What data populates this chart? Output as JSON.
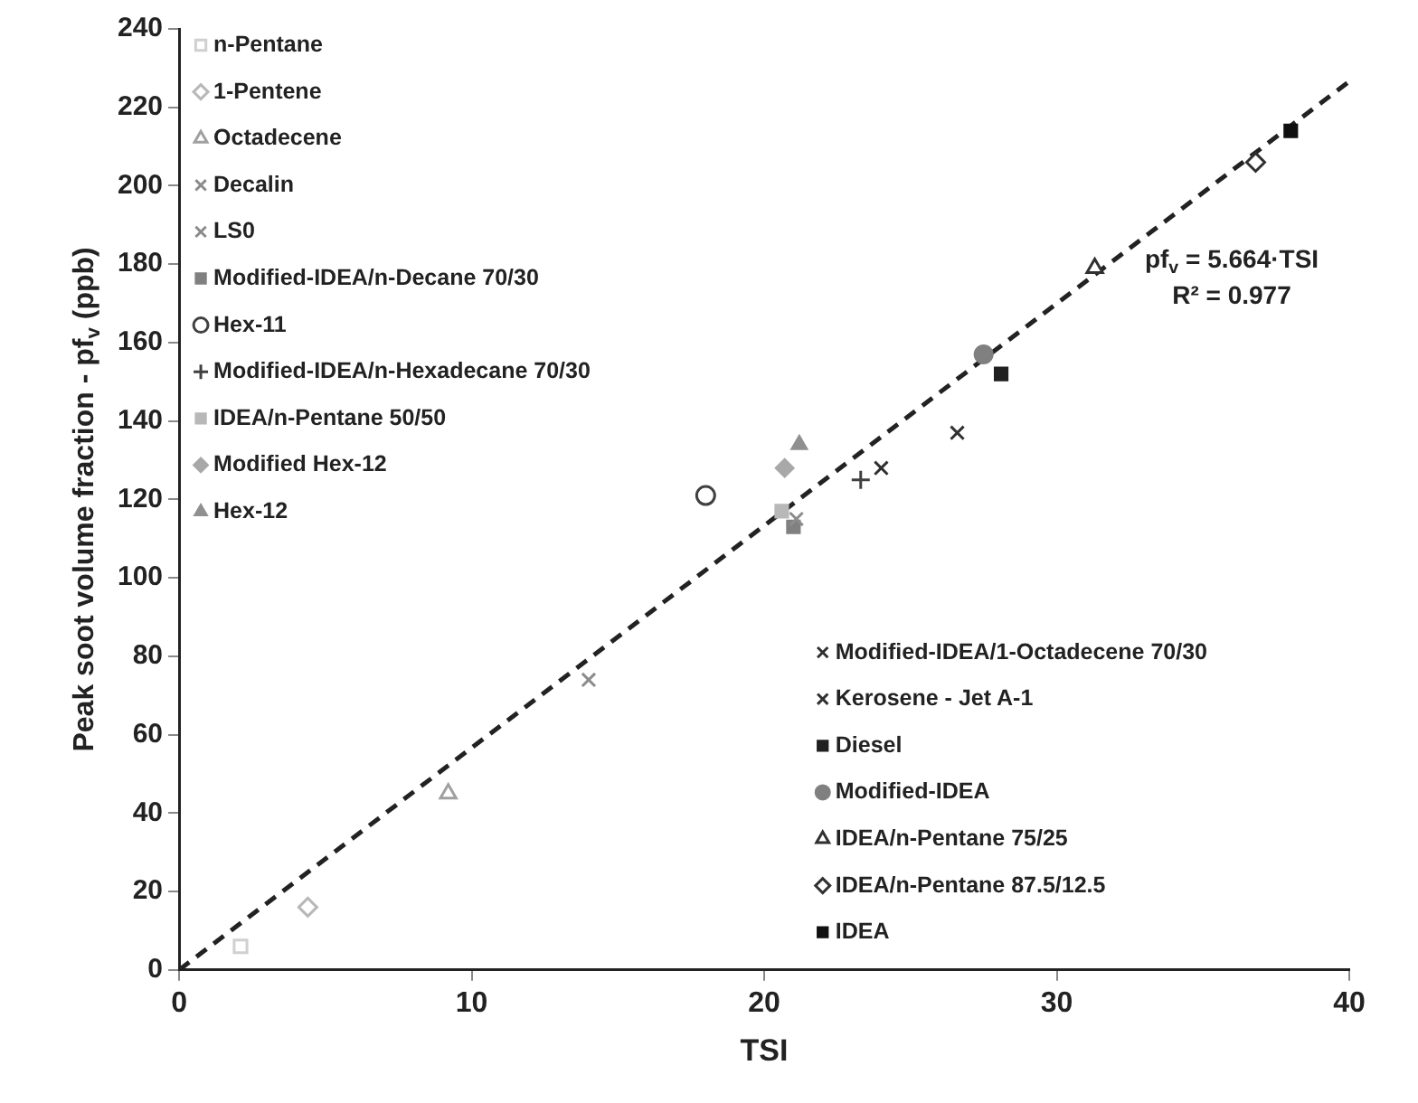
{
  "chart_data": {
    "type": "scatter",
    "xlabel": "TSI",
    "ylabel": "Peak soot volume fraction - pf$_{v}$ (ppb)",
    "xlim": [
      0,
      40
    ],
    "xticks": [
      0,
      10,
      20,
      30,
      40
    ],
    "ylim": [
      0,
      240
    ],
    "yticks": [
      0,
      20,
      40,
      60,
      80,
      100,
      120,
      140,
      160,
      180,
      200,
      220,
      240
    ],
    "grid": false,
    "legend": "top left",
    "annotations": [
      "pf$_{v}$ = 5.664·TSI",
      "R² = 0.977"
    ],
    "series": [
      {
        "name": "n-Pentane",
        "color": "#d0d0d0",
        "marker": "square-open",
        "x": [
          2.1
        ],
        "values": [
          6
        ]
      },
      {
        "name": "1-Pentene",
        "color": "#b8b8b8",
        "marker": "diamond-open",
        "x": [
          4.4
        ],
        "values": [
          16
        ]
      },
      {
        "name": "Octadecene",
        "color": "#a0a0a0",
        "marker": "triangle-open",
        "x": [
          9.2
        ],
        "values": [
          45
        ]
      },
      {
        "name": "Decalin",
        "color": "#8c8c8c",
        "marker": "cross",
        "x": [
          14.0
        ],
        "values": [
          74
        ]
      },
      {
        "name": "LS0",
        "color": "#8c8c8c",
        "marker": "cross",
        "x": [
          21.1
        ],
        "values": [
          115
        ]
      },
      {
        "name": "Modified-IDEA/n-Decane 70/30",
        "color": "#808080",
        "marker": "square",
        "x": [
          21.0
        ],
        "values": [
          113
        ]
      },
      {
        "name": "Hex-11",
        "color": "#404040",
        "marker": "circle-open",
        "x": [
          18.0
        ],
        "values": [
          121
        ]
      },
      {
        "name": "Modified-IDEA/n-Hexadecane 70/30",
        "color": "#404040",
        "marker": "plus",
        "x": [
          23.3
        ],
        "values": [
          125
        ]
      },
      {
        "name": "IDEA/n-Pentane 50/50",
        "color": "#b8b8b8",
        "marker": "square",
        "x": [
          20.6
        ],
        "values": [
          117
        ]
      },
      {
        "name": "Modified Hex-12",
        "color": "#a8a8a8",
        "marker": "diamond",
        "x": [
          20.7
        ],
        "values": [
          128
        ]
      },
      {
        "name": "Hex-12",
        "color": "#909090",
        "marker": "triangle",
        "x": [
          21.2
        ],
        "values": [
          134
        ]
      },
      {
        "name": "Modified-IDEA/1-Octadecene 70/30",
        "color": "#303030",
        "marker": "cross",
        "x": [
          24.0
        ],
        "values": [
          128
        ]
      },
      {
        "name": "Kerosene - Jet A-1",
        "color": "#303030",
        "marker": "cross",
        "x": [
          26.6
        ],
        "values": [
          137
        ]
      },
      {
        "name": "Diesel",
        "color": "#202020",
        "marker": "square",
        "x": [
          28.1
        ],
        "values": [
          152
        ]
      },
      {
        "name": "Modified-IDEA",
        "color": "#808080",
        "marker": "circle",
        "x": [
          27.5
        ],
        "values": [
          157
        ]
      },
      {
        "name": "IDEA/n-Pentane 75/25",
        "color": "#303030",
        "marker": "triangle-open",
        "x": [
          31.3
        ],
        "values": [
          179
        ]
      },
      {
        "name": "IDEA/n-Pentane 87.5/12.5",
        "color": "#303030",
        "marker": "diamond-open",
        "x": [
          36.8
        ],
        "values": [
          206
        ]
      },
      {
        "name": "IDEA",
        "color": "#101010",
        "marker": "square",
        "x": [
          38.0
        ],
        "values": [
          214
        ]
      },
      {
        "type": "line",
        "color": "#222222",
        "line_style": "dashed",
        "marker": "none",
        "x": [
          0,
          40
        ],
        "values": [
          0,
          226.6
        ]
      }
    ]
  }
}
